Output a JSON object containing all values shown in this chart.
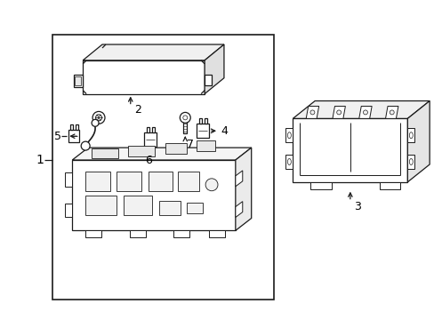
{
  "background_color": "#ffffff",
  "line_color": "#1a1a1a",
  "text_color": "#000000",
  "fig_width": 4.89,
  "fig_height": 3.6,
  "dpi": 100,
  "labels": {
    "1": "1",
    "2": "2",
    "3": "3",
    "4": "4",
    "5": "5",
    "6": "6",
    "7": "7"
  },
  "font_size": 9,
  "border": [
    58,
    22,
    250,
    300
  ]
}
